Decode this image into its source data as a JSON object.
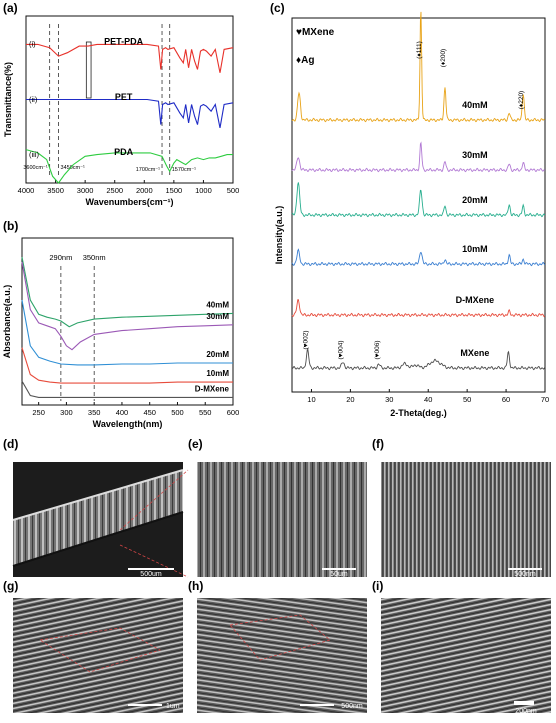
{
  "figure": {
    "panel_labels": [
      "(a)",
      "(b)",
      "(c)",
      "(d)",
      "(e)",
      "(f)",
      "(g)",
      "(h)",
      "(i)"
    ]
  },
  "chart_data": [
    {
      "panel": "(a)",
      "type": "line",
      "xlabel": "Wavenumbers(cm⁻¹)",
      "ylabel": "Transmittance(%)",
      "xlim": [
        4000,
        500
      ],
      "x_ticks": [
        4000,
        3500,
        3000,
        2500,
        2000,
        1500,
        1000,
        500
      ],
      "annotations": [
        "3600cm⁻¹",
        "3450cm⁻¹",
        "1700cm⁻¹",
        "1570cm⁻¹"
      ],
      "markers": [
        3600,
        3450,
        1700,
        1570
      ],
      "series": [
        {
          "name": "PET-PDA",
          "tag": "(i)",
          "color": "#e8312a",
          "offset": 0.78,
          "x": [
            4000,
            3800,
            3600,
            3450,
            3300,
            3100,
            2950,
            2800,
            2500,
            2200,
            1950,
            1760,
            1720,
            1690,
            1640,
            1600,
            1500,
            1400,
            1340,
            1300,
            1250,
            1200,
            1150,
            1100,
            1050,
            1000,
            950,
            870,
            800,
            720,
            650,
            500
          ],
          "y": [
            0.05,
            0.05,
            0.03,
            -0.02,
            0.0,
            0.04,
            0.04,
            0.05,
            0.05,
            0.05,
            0.05,
            0.04,
            -0.1,
            0.02,
            0.03,
            0.02,
            0.03,
            -0.03,
            -0.06,
            0.02,
            -0.09,
            0.02,
            -0.05,
            -0.1,
            0.01,
            0.02,
            0.01,
            -0.02,
            0.02,
            -0.12,
            0.02,
            0.03
          ]
        },
        {
          "name": "PET",
          "tag": "(ii)",
          "color": "#1f2bc6",
          "offset": 0.45,
          "x": [
            4000,
            3800,
            3600,
            3450,
            3300,
            3100,
            2950,
            2800,
            2500,
            2200,
            1950,
            1760,
            1720,
            1690,
            1640,
            1600,
            1500,
            1400,
            1340,
            1300,
            1250,
            1200,
            1150,
            1100,
            1050,
            1000,
            950,
            870,
            800,
            720,
            650,
            500
          ],
          "y": [
            0.05,
            0.05,
            0.05,
            0.05,
            0.05,
            0.05,
            0.05,
            0.05,
            0.05,
            0.05,
            0.05,
            0.04,
            -0.1,
            0.02,
            0.03,
            0.02,
            0.03,
            -0.03,
            -0.06,
            0.02,
            -0.09,
            0.02,
            -0.05,
            -0.1,
            0.01,
            0.02,
            0.01,
            -0.02,
            0.02,
            -0.12,
            0.02,
            0.03
          ]
        },
        {
          "name": "PDA",
          "tag": "(iii)",
          "color": "#2ecc40",
          "offset": 0.12,
          "x": [
            4000,
            3800,
            3650,
            3550,
            3450,
            3350,
            3200,
            3000,
            2800,
            2500,
            2200,
            1900,
            1700,
            1620,
            1570,
            1500,
            1450,
            1350,
            1300,
            1200,
            1100,
            1000,
            900,
            800,
            700,
            600,
            500
          ],
          "y": [
            0.08,
            0.06,
            0.02,
            -0.08,
            -0.12,
            -0.07,
            -0.01,
            0.04,
            0.05,
            0.06,
            0.06,
            0.06,
            0.04,
            -0.02,
            -0.05,
            0.0,
            0.02,
            0.0,
            -0.01,
            0.02,
            0.03,
            0.02,
            0.03,
            0.03,
            0.04,
            0.05,
            0.05
          ]
        }
      ]
    },
    {
      "panel": "(b)",
      "type": "line",
      "xlabel": "Wavelength(nm)",
      "ylabel": "Absorbance(a.u.)",
      "xlim": [
        220,
        600
      ],
      "x_ticks": [
        250,
        300,
        350,
        400,
        450,
        500,
        550,
        600
      ],
      "annotations": [
        "290nm",
        "350nm"
      ],
      "markers": [
        290,
        350
      ],
      "series": [
        {
          "name": "40mM",
          "color": "#2ea36a",
          "x": [
            220,
            235,
            250,
            265,
            280,
            290,
            305,
            320,
            350,
            400,
            450,
            500,
            550,
            600
          ],
          "y": [
            1.55,
            1.1,
            0.95,
            0.92,
            0.9,
            0.88,
            0.82,
            0.86,
            0.9,
            0.92,
            0.93,
            0.94,
            0.95,
            0.96
          ]
        },
        {
          "name": "30mM",
          "color": "#9b59b6",
          "x": [
            220,
            235,
            250,
            265,
            280,
            290,
            300,
            310,
            325,
            350,
            400,
            450,
            500,
            550,
            600
          ],
          "y": [
            1.5,
            1.0,
            0.86,
            0.83,
            0.8,
            0.72,
            0.62,
            0.58,
            0.66,
            0.74,
            0.78,
            0.8,
            0.82,
            0.83,
            0.84
          ]
        },
        {
          "name": "20mM",
          "color": "#2f8fd5",
          "x": [
            220,
            235,
            250,
            270,
            290,
            320,
            350,
            400,
            450,
            500,
            550,
            600
          ],
          "y": [
            1.1,
            0.62,
            0.5,
            0.46,
            0.43,
            0.42,
            0.42,
            0.43,
            0.43,
            0.44,
            0.44,
            0.44
          ]
        },
        {
          "name": "10mM",
          "color": "#e74c3c",
          "x": [
            220,
            235,
            250,
            270,
            290,
            320,
            350,
            400,
            450,
            500,
            550,
            600
          ],
          "y": [
            0.6,
            0.32,
            0.26,
            0.24,
            0.23,
            0.23,
            0.23,
            0.23,
            0.23,
            0.24,
            0.24,
            0.24
          ]
        },
        {
          "name": "D-MXene",
          "color": "#555555",
          "x": [
            220,
            235,
            250,
            270,
            290,
            320,
            350,
            400,
            450,
            500,
            550,
            600
          ],
          "y": [
            0.25,
            0.1,
            0.08,
            0.08,
            0.08,
            0.08,
            0.08,
            0.08,
            0.08,
            0.08,
            0.08,
            0.08
          ]
        }
      ]
    },
    {
      "panel": "(c)",
      "type": "line",
      "xlabel": "2-Theta(deg.)",
      "ylabel": "Intensity(a.u.)",
      "xlim": [
        5,
        70
      ],
      "x_ticks": [
        10,
        20,
        30,
        40,
        50,
        60,
        70
      ],
      "legend": [
        "♥MXene",
        "♦Ag"
      ],
      "peak_labels": [
        {
          "text": "(♦111)",
          "x": 38.1
        },
        {
          "text": "(♦200)",
          "x": 44.3
        },
        {
          "text": "(♦220)",
          "x": 64.4
        },
        {
          "text": "(♥002)",
          "x": 9.0
        },
        {
          "text": "(♥004)",
          "x": 18.0
        },
        {
          "text": "(♥006)",
          "x": 27.3
        }
      ],
      "series": [
        {
          "name": "40mM",
          "color": "#e8a317",
          "peaks": [
            {
              "x": 6.8,
              "h": 0.45,
              "w": 0.5
            },
            {
              "x": 38.1,
              "h": 1.85,
              "w": 0.3
            },
            {
              "x": 44.3,
              "h": 0.55,
              "w": 0.35
            },
            {
              "x": 60.8,
              "h": 0.12,
              "w": 0.35
            },
            {
              "x": 64.4,
              "h": 0.45,
              "w": 0.35
            }
          ]
        },
        {
          "name": "30mM",
          "color": "#b27ad4",
          "peaks": [
            {
              "x": 6.6,
              "h": 0.22,
              "w": 0.5
            },
            {
              "x": 38.1,
              "h": 0.45,
              "w": 0.35
            },
            {
              "x": 44.3,
              "h": 0.14,
              "w": 0.35
            },
            {
              "x": 60.8,
              "h": 0.1,
              "w": 0.35
            },
            {
              "x": 64.4,
              "h": 0.12,
              "w": 0.35
            }
          ]
        },
        {
          "name": "20mM",
          "color": "#27ae8e",
          "peaks": [
            {
              "x": 6.6,
              "h": 0.55,
              "w": 0.5
            },
            {
              "x": 38.1,
              "h": 0.42,
              "w": 0.45
            },
            {
              "x": 44.3,
              "h": 0.16,
              "w": 0.35
            },
            {
              "x": 60.8,
              "h": 0.18,
              "w": 0.35
            },
            {
              "x": 64.4,
              "h": 0.15,
              "w": 0.35
            }
          ]
        },
        {
          "name": "10mM",
          "color": "#3b7fd1",
          "peaks": [
            {
              "x": 6.6,
              "h": 0.22,
              "w": 0.5
            },
            {
              "x": 38.1,
              "h": 0.22,
              "w": 0.45
            },
            {
              "x": 44.3,
              "h": 0.08,
              "w": 0.35
            },
            {
              "x": 60.8,
              "h": 0.15,
              "w": 0.35
            },
            {
              "x": 64.4,
              "h": 0.08,
              "w": 0.35
            }
          ]
        },
        {
          "name": "D-MXene",
          "color": "#e74c3c",
          "peaks": [
            {
              "x": 6.6,
              "h": 0.25,
              "w": 0.5
            },
            {
              "x": 60.8,
              "h": 0.06,
              "w": 0.35
            }
          ]
        },
        {
          "name": "MXene",
          "color": "#4d4d4d",
          "peaks": [
            {
              "x": 9.0,
              "h": 0.3,
              "w": 0.45
            },
            {
              "x": 18.1,
              "h": 0.1,
              "w": 0.5
            },
            {
              "x": 27.3,
              "h": 0.06,
              "w": 0.5
            },
            {
              "x": 34.0,
              "h": 0.07,
              "w": 1.0
            },
            {
              "x": 36.8,
              "h": 0.05,
              "w": 1.0
            },
            {
              "x": 41.8,
              "h": 0.12,
              "w": 2.0
            },
            {
              "x": 60.6,
              "h": 0.26,
              "w": 0.4
            }
          ]
        }
      ]
    }
  ],
  "images": [
    {
      "panel": "(d)",
      "scale_bar": "500um"
    },
    {
      "panel": "(e)",
      "scale_bar": "50um"
    },
    {
      "panel": "(f)",
      "scale_bar": "500nm"
    },
    {
      "panel": "(g)",
      "scale_bar": "1um"
    },
    {
      "panel": "(h)",
      "scale_bar": "500nm"
    },
    {
      "panel": "(i)",
      "scale_bar": "200nm"
    }
  ]
}
